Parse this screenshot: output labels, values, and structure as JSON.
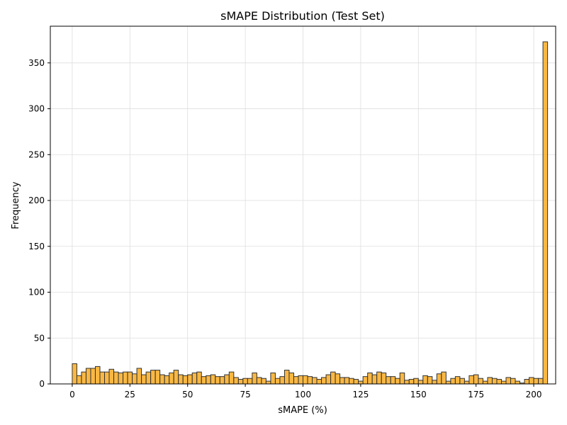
{
  "chart_data": {
    "type": "bar",
    "title": "sMAPE Distribution (Test Set)",
    "xlabel": "sMAPE (%)",
    "ylabel": "Frequency",
    "xlim": [
      -9.5,
      209.5
    ],
    "ylim": [
      0,
      390
    ],
    "x_ticks": [
      0,
      25,
      50,
      75,
      100,
      125,
      150,
      175,
      200
    ],
    "y_ticks": [
      0,
      50,
      100,
      150,
      200,
      250,
      300,
      350
    ],
    "grid": true,
    "bin_start": 0,
    "bin_width": 2,
    "bar_color": "#f9ab22",
    "bar_edge_color": "#333333",
    "values": [
      22,
      9,
      13,
      17,
      17,
      19,
      13,
      13,
      16,
      13,
      12,
      13,
      13,
      11,
      17,
      10,
      13,
      15,
      15,
      10,
      9,
      12,
      15,
      10,
      9,
      10,
      12,
      13,
      8,
      9,
      10,
      8,
      8,
      10,
      13,
      7,
      5,
      6,
      6,
      12,
      7,
      6,
      3,
      12,
      6,
      8,
      15,
      12,
      8,
      9,
      9,
      8,
      7,
      5,
      7,
      10,
      13,
      11,
      7,
      7,
      6,
      5,
      3,
      8,
      12,
      10,
      13,
      12,
      8,
      8,
      6,
      12,
      4,
      5,
      6,
      4,
      9,
      8,
      4,
      11,
      13,
      3,
      6,
      8,
      6,
      3,
      9,
      10,
      6,
      3,
      7,
      6,
      5,
      3,
      7,
      6,
      3,
      1,
      5,
      7,
      6,
      6,
      373
    ]
  }
}
